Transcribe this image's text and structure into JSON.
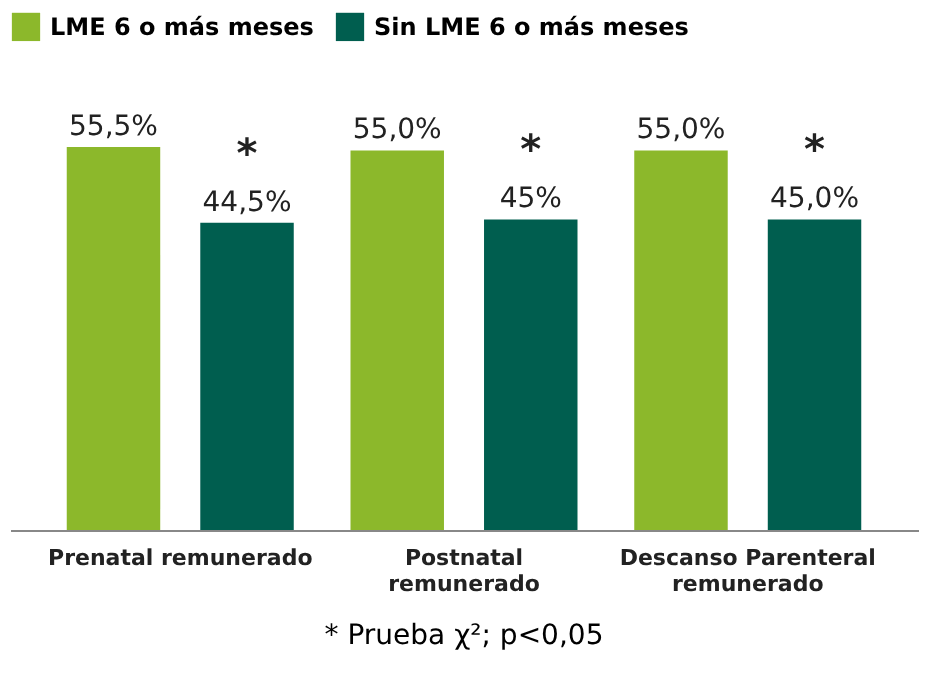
{
  "chart_data": {
    "type": "bar",
    "categories": [
      "Prenatal remunerado",
      "Postnatal remunerado",
      "Descanso Parenteral remunerado"
    ],
    "series": [
      {
        "name": "LME 6 o más meses",
        "color": "#8cb82b",
        "values": [
          55.5,
          55.0,
          55.0
        ],
        "value_labels": [
          "55,5%",
          "55,0%",
          "55,0%"
        ]
      },
      {
        "name": "Sin LME 6 o más meses",
        "color": "#005e4f",
        "values": [
          44.5,
          45,
          45.0
        ],
        "value_labels": [
          "44,5%",
          "45%",
          "45,0%"
        ]
      }
    ],
    "legend": "top",
    "annotations": [
      "*",
      "*",
      "*",
      "* Prueba χ²; p<0,05"
    ]
  }
}
